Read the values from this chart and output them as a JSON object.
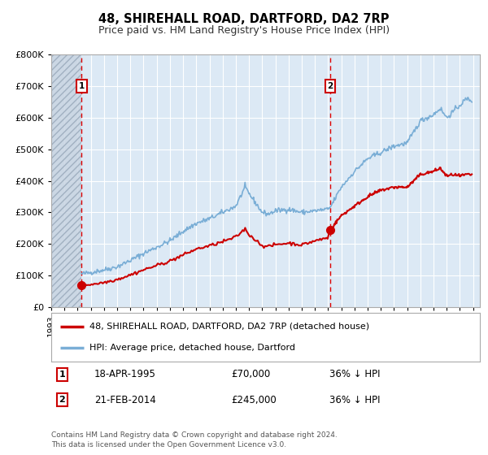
{
  "title": "48, SHIREHALL ROAD, DARTFORD, DA2 7RP",
  "subtitle": "Price paid vs. HM Land Registry's House Price Index (HPI)",
  "title_fontsize": 10.5,
  "subtitle_fontsize": 9,
  "bg_color": "#dce9f5",
  "grid_color": "#ffffff",
  "red_line_color": "#cc0000",
  "blue_line_color": "#7aaed6",
  "transaction1_date_x": 1995.3,
  "transaction1_price": 70000,
  "transaction2_date_x": 2014.15,
  "transaction2_price": 245000,
  "legend_line1": "48, SHIREHALL ROAD, DARTFORD, DA2 7RP (detached house)",
  "legend_line2": "HPI: Average price, detached house, Dartford",
  "note1_date": "18-APR-1995",
  "note1_price": "£70,000",
  "note1_hpi": "36% ↓ HPI",
  "note2_date": "21-FEB-2014",
  "note2_price": "£245,000",
  "note2_hpi": "36% ↓ HPI",
  "footer": "Contains HM Land Registry data © Crown copyright and database right 2024.\nThis data is licensed under the Open Government Licence v3.0.",
  "xlim_left": 1993.0,
  "xlim_right": 2025.5,
  "ylim_bottom": 0,
  "ylim_top": 800000,
  "hatch_region_end": 1995.3
}
